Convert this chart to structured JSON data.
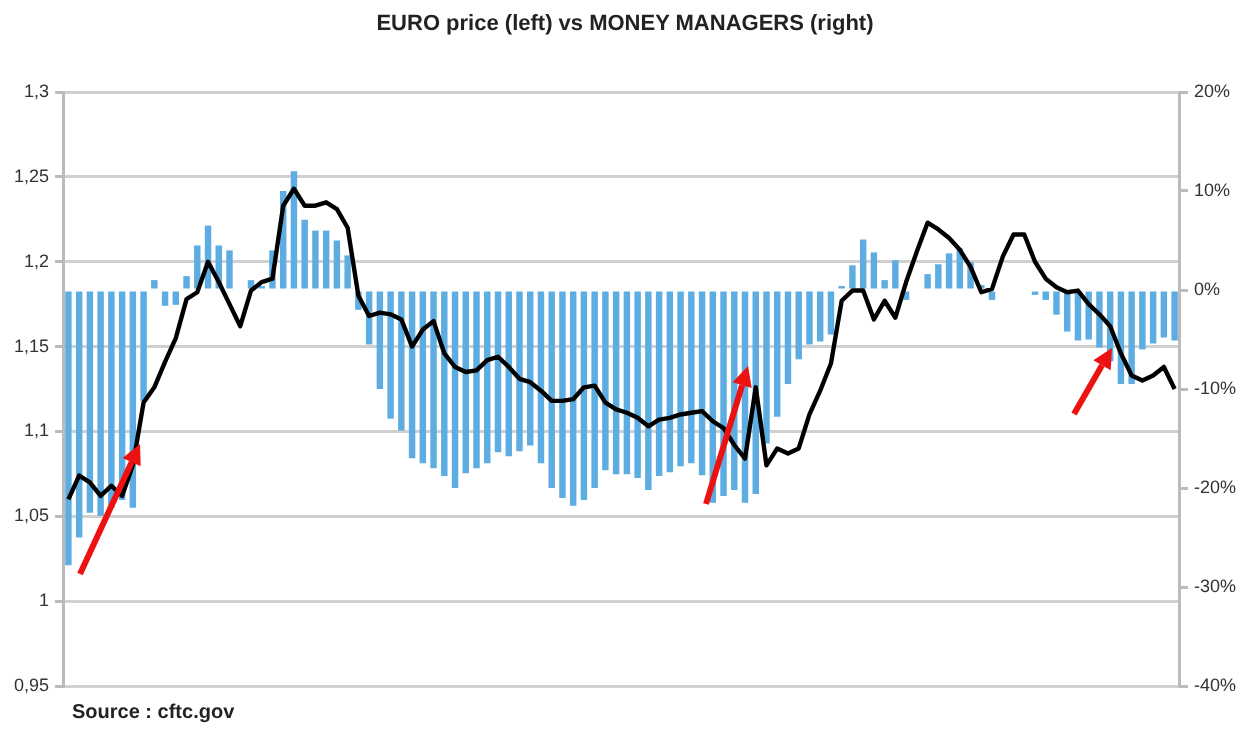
{
  "chart_data": {
    "type": "bar",
    "title": "EURO price (left) vs MONEY MANAGERS (right)",
    "categories": [
      null,
      null,
      null,
      null,
      null,
      null,
      null,
      null,
      null,
      null,
      null,
      null,
      null,
      null,
      null,
      null,
      null,
      null,
      null,
      null,
      null,
      null,
      null,
      null,
      null,
      null,
      null,
      null,
      null,
      null,
      null,
      null,
      null,
      null,
      null,
      null,
      null,
      null,
      null,
      null,
      null,
      null,
      null,
      null,
      null,
      null,
      null,
      null,
      null,
      null,
      null,
      null,
      null,
      null,
      null,
      null,
      null,
      null,
      null,
      null,
      null,
      null,
      null,
      null,
      null,
      null,
      null,
      null,
      null,
      null,
      null,
      null,
      null,
      null,
      null,
      null,
      null,
      null,
      null,
      null,
      null,
      null,
      null,
      null,
      null,
      null,
      null,
      null,
      null,
      null,
      null,
      null,
      null,
      null,
      null,
      null,
      null,
      null,
      null,
      null,
      null,
      null,
      null,
      null
    ],
    "series": [
      {
        "axis": "y2",
        "color": "#5dade2",
        "values": [
          -27.8,
          -25,
          -22.5,
          -22.8,
          -22,
          -21.2,
          -22,
          -11.2,
          1,
          -1.6,
          -1.5,
          1.4,
          4.5,
          6.5,
          4.5,
          4,
          0,
          1,
          0.4,
          4,
          10,
          12,
          7.1,
          6,
          6,
          5,
          3.5,
          -2,
          -5.5,
          -10,
          -13,
          -14.2,
          -17,
          -17.5,
          -18,
          -18.8,
          -20,
          -18.5,
          -18,
          -17.5,
          -16.4,
          -16.8,
          -16.3,
          -15.7,
          -17.5,
          -20,
          -21,
          -21.8,
          -21.2,
          -20,
          -18.2,
          -18.6,
          -18.6,
          -19,
          -20.2,
          -18.8,
          -18.4,
          -17.8,
          -17.5,
          -18.7,
          -21.5,
          -20.8,
          -20.2,
          -21.5,
          -20.6,
          -15.5,
          -12.8,
          -9.5,
          -7,
          -5.5,
          -5.2,
          -4.5,
          0.4,
          2.5,
          5.1,
          3.8,
          1,
          3,
          -1,
          null,
          1.6,
          2.6,
          3.7,
          4.2,
          2.8,
          0.5,
          -1,
          null,
          null,
          null,
          -0.5,
          -1,
          -2.5,
          -4.2,
          -5.1,
          -5,
          -5.8,
          -7.2,
          -9.5,
          -9.5,
          -6,
          -5.4,
          -4.8,
          -5.1
        ]
      },
      {
        "type": "line",
        "axis": "y",
        "color": "#000000",
        "values": [
          1.06,
          1.074,
          1.07,
          1.062,
          1.068,
          1.062,
          1.08,
          1.117,
          1.126,
          1.141,
          1.155,
          1.178,
          1.182,
          1.2,
          1.188,
          1.175,
          1.162,
          1.183,
          1.188,
          1.19,
          1.233,
          1.243,
          1.233,
          1.233,
          1.235,
          1.231,
          1.22,
          1.18,
          1.168,
          1.17,
          1.169,
          1.166,
          1.15,
          1.16,
          1.165,
          1.146,
          1.138,
          1.135,
          1.136,
          1.142,
          1.144,
          1.138,
          1.131,
          1.129,
          1.124,
          1.118,
          1.118,
          1.119,
          1.126,
          1.127,
          1.117,
          1.113,
          1.111,
          1.108,
          1.103,
          1.107,
          1.108,
          1.11,
          1.111,
          1.112,
          1.106,
          1.102,
          1.092,
          1.084,
          1.126,
          1.08,
          1.09,
          1.087,
          1.09,
          1.11,
          1.124,
          1.14,
          1.177,
          1.183,
          1.183,
          1.166,
          1.177,
          1.167,
          1.188,
          1.206,
          1.223,
          1.219,
          1.214,
          1.207,
          1.197,
          1.182,
          1.184,
          1.203,
          1.216,
          1.216,
          1.2,
          1.19,
          1.185,
          1.182,
          1.183,
          1.175,
          1.169,
          1.162,
          1.146,
          1.133,
          1.13,
          1.133,
          1.138,
          1.125
        ]
      }
    ],
    "ylim": [
      0.95,
      1.3
    ],
    "yticks": [
      {
        "value": 0.95,
        "label": "0,95"
      },
      {
        "value": 1,
        "label": "1"
      },
      {
        "value": 1.05,
        "label": "1,05"
      },
      {
        "value": 1.1,
        "label": "1,1"
      },
      {
        "value": 1.15,
        "label": "1,15"
      },
      {
        "value": 1.2,
        "label": "1,2"
      },
      {
        "value": 1.25,
        "label": "1,25"
      },
      {
        "value": 1.3,
        "label": "1,3"
      }
    ],
    "y2lim": [
      -40,
      20
    ],
    "y2ticks": [
      {
        "value": -40,
        "label": "-40%"
      },
      {
        "value": -30,
        "label": "-30%"
      },
      {
        "value": -20,
        "label": "-20%"
      },
      {
        "value": -10,
        "label": "-10%"
      },
      {
        "value": 0,
        "label": "0%"
      },
      {
        "value": 10,
        "label": "10%"
      },
      {
        "value": 20,
        "label": "20%"
      }
    ],
    "grid": "y",
    "legend": false,
    "marker": "none",
    "line_style": "solid",
    "annotations": [
      "Source : cftc.gov"
    ]
  }
}
